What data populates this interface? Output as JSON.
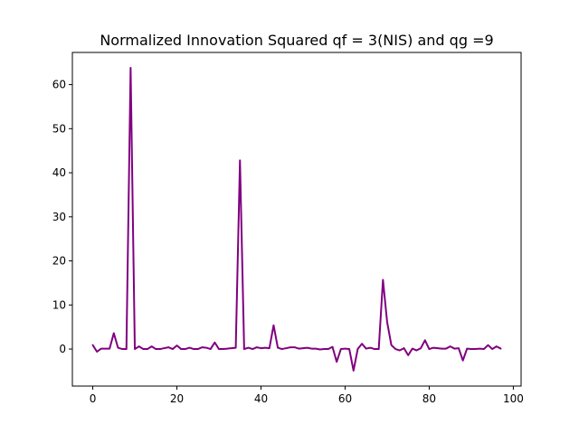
{
  "chart_data": {
    "type": "line",
    "title": "Normalized Innovation Squared qf = 3(NIS) and qg =9",
    "xlabel": "",
    "ylabel": "",
    "xlim": [
      -4.85,
      101.85
    ],
    "ylim": [
      -8.4,
      67.3
    ],
    "xticks": [
      0,
      20,
      40,
      60,
      80,
      100
    ],
    "yticks": [
      0,
      10,
      20,
      30,
      40,
      50,
      60
    ],
    "grid": false,
    "line_color": "#800080",
    "series": [
      {
        "x": [
          0,
          1,
          2,
          3,
          4,
          5,
          6,
          7,
          8,
          9,
          10,
          11,
          12,
          13,
          14,
          15,
          16,
          17,
          18,
          19,
          20,
          21,
          22,
          23,
          24,
          25,
          26,
          27,
          28,
          29,
          30,
          31,
          32,
          33,
          34,
          35,
          36,
          37,
          38,
          39,
          40,
          41,
          42,
          43,
          44,
          45,
          46,
          47,
          48,
          49,
          50,
          51,
          52,
          53,
          54,
          55,
          56,
          57,
          58,
          59,
          60,
          61,
          62,
          63,
          64,
          65,
          66,
          67,
          68,
          69,
          70,
          71,
          72,
          73,
          74,
          75,
          76,
          77,
          78,
          79,
          80,
          81,
          82,
          83,
          84,
          85,
          86,
          87,
          88,
          89,
          90,
          91,
          92,
          93,
          94,
          95,
          96,
          97
        ],
        "values": [
          0.9,
          -0.6,
          0.1,
          0.1,
          0.1,
          3.6,
          0.3,
          0.0,
          0.0,
          63.8,
          0.0,
          0.6,
          0.0,
          0.0,
          0.6,
          0.0,
          0.0,
          0.2,
          0.4,
          0.0,
          0.8,
          0.0,
          0.0,
          0.3,
          0.0,
          0.0,
          0.4,
          0.3,
          0.0,
          1.5,
          0.0,
          0.0,
          0.1,
          0.2,
          0.3,
          42.8,
          0.0,
          0.3,
          0.0,
          0.4,
          0.2,
          0.3,
          0.2,
          5.4,
          0.3,
          0.0,
          0.2,
          0.4,
          0.4,
          0.1,
          0.2,
          0.3,
          0.1,
          0.1,
          -0.1,
          0.0,
          0.0,
          0.5,
          -2.9,
          0.0,
          0.1,
          0.0,
          -4.9,
          0.0,
          1.2,
          0.1,
          0.3,
          0.0,
          0.0,
          15.7,
          6.1,
          0.9,
          0.0,
          -0.3,
          0.2,
          -1.4,
          0.1,
          -0.3,
          0.2,
          2.0,
          0.0,
          0.3,
          0.2,
          0.1,
          0.1,
          0.6,
          0.1,
          0.2,
          -2.6,
          0.1,
          0.0,
          0.0,
          0.1,
          0.0,
          0.9,
          0.0,
          0.6,
          0.1
        ]
      }
    ]
  }
}
